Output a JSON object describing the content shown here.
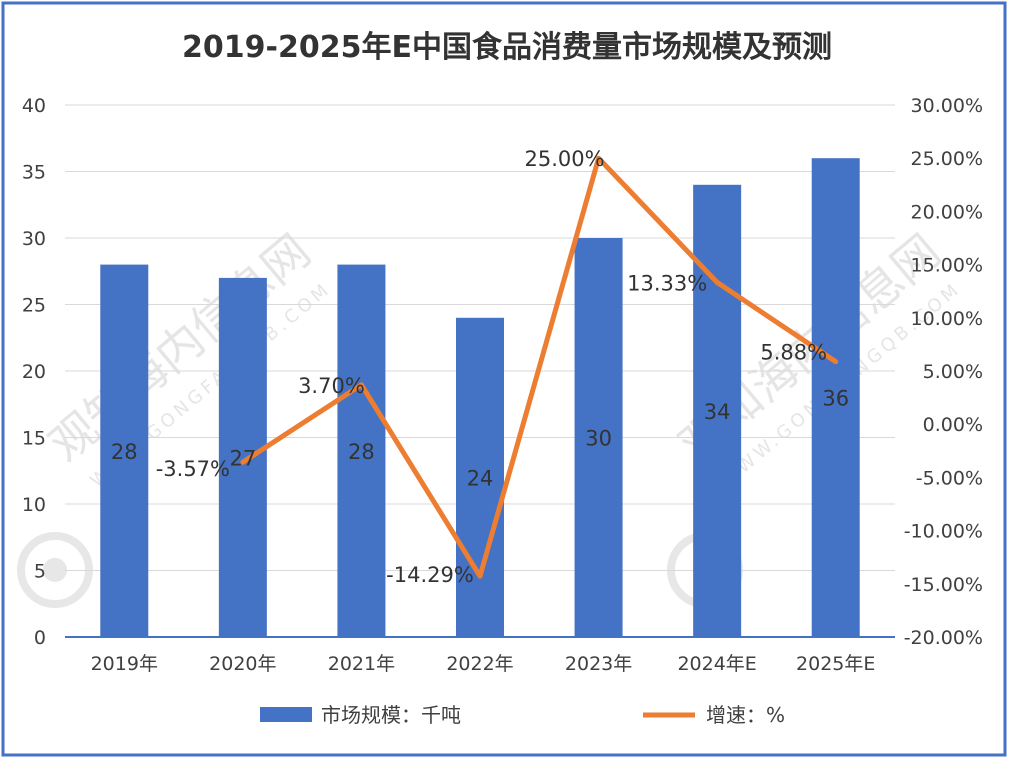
{
  "colors": {
    "frame": "#4472C4",
    "bar": "#4472C4",
    "line": "#ED7D31",
    "grid": "#D9D9D9",
    "axis": "#4472C4",
    "text": "#404040",
    "watermark": "#D0D0D0"
  },
  "watermark": {
    "text": "观知海内信息网",
    "sub": "WWW.GONGFANGQB.COM"
  },
  "chart_data": {
    "type": "bar",
    "title": "2019-2025年E中国食品消费量市场规模及预测",
    "categories": [
      "2019年",
      "2020年",
      "2021年",
      "2022年",
      "2023年",
      "2024年E",
      "2025年E"
    ],
    "series": [
      {
        "name": "市场规模：千吨",
        "type": "bar",
        "axis": "left",
        "values": [
          28,
          27,
          28,
          24,
          30,
          34,
          36
        ]
      },
      {
        "name": "增速：%",
        "type": "line",
        "axis": "right",
        "values": [
          null,
          -3.57,
          3.7,
          -14.29,
          25.0,
          13.33,
          5.88
        ]
      }
    ],
    "bar_labels": [
      "28",
      "27",
      "28",
      "24",
      "30",
      "34",
      "36"
    ],
    "line_labels": [
      "",
      "-3.57%",
      "3.70%",
      "-14.29%",
      "25.00%",
      "13.33%",
      "5.88%"
    ],
    "y_left": {
      "ylim": [
        0,
        40
      ],
      "ticks": [
        "0",
        "5",
        "10",
        "15",
        "20",
        "25",
        "30",
        "35",
        "40"
      ]
    },
    "y_right": {
      "ylim": [
        -20,
        30
      ],
      "ticks": [
        "-20.00%",
        "-15.00%",
        "-10.00%",
        "-5.00%",
        "0.00%",
        "5.00%",
        "10.00%",
        "15.00%",
        "20.00%",
        "25.00%",
        "30.00%"
      ]
    },
    "grid": true,
    "legend": "bottom"
  }
}
